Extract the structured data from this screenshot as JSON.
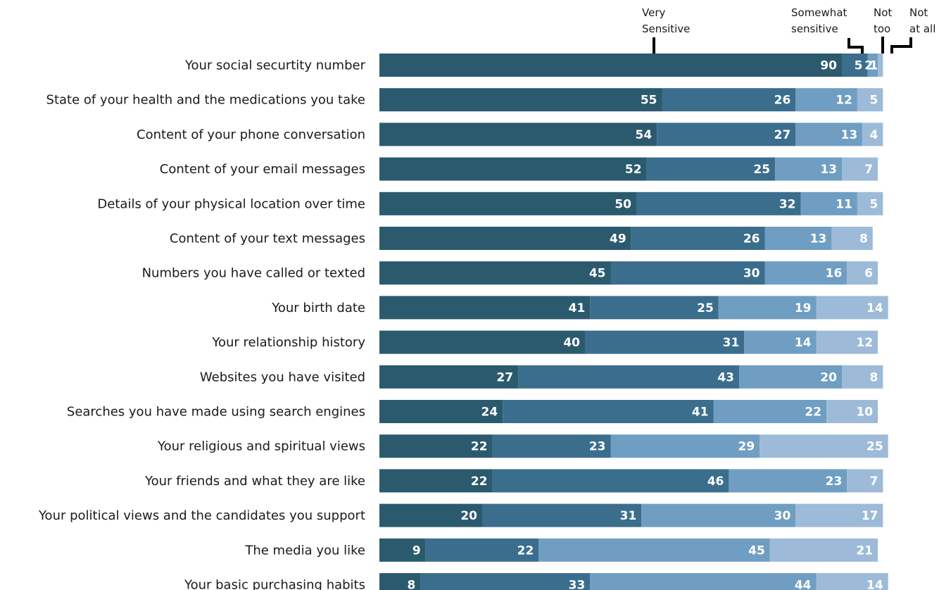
{
  "chart_data": {
    "type": "bar",
    "orientation": "horizontal",
    "stacked": true,
    "title": "",
    "xlabel": "",
    "ylabel": "",
    "grid": false,
    "legend_placement": "top, above bars with leader lines",
    "categories": [
      "Your social securtity number",
      "State of your health and the medications you take",
      "Content of your phone conversation",
      "Content of your email messages",
      "Details of your physical location over time",
      "Content of your text messages",
      "Numbers you have called or texted",
      "Your birth date",
      "Your relationship history",
      "Websites you have visited",
      "Searches you have made using search engines",
      "Your religious and spiritual views",
      "Your friends and what they are like",
      "Your political views and the candidates you support",
      "The media you like",
      "Your basic purchasing habits"
    ],
    "series": [
      {
        "name": "Very Sensitive",
        "legend_lines": [
          "Very",
          "Sensitive"
        ],
        "color": "#2b5a6e",
        "values": [
          90,
          55,
          54,
          52,
          50,
          49,
          45,
          41,
          40,
          27,
          24,
          22,
          22,
          20,
          9,
          8
        ]
      },
      {
        "name": "Somewhat sensitive",
        "legend_lines": [
          "Somewhat",
          "sensitive"
        ],
        "color": "#3a6e8c",
        "values": [
          5,
          26,
          27,
          25,
          32,
          26,
          30,
          25,
          31,
          43,
          41,
          23,
          46,
          31,
          22,
          33
        ]
      },
      {
        "name": "Not too",
        "legend_lines": [
          "Not",
          "too"
        ],
        "color": "#6f9ec2",
        "values": [
          2,
          12,
          13,
          13,
          11,
          13,
          16,
          19,
          14,
          20,
          22,
          29,
          23,
          30,
          45,
          44
        ]
      },
      {
        "name": "Not at all",
        "legend_lines": [
          "Not",
          "at all"
        ],
        "color": "#9dbbd8",
        "values": [
          1,
          5,
          4,
          7,
          5,
          8,
          6,
          14,
          12,
          8,
          10,
          25,
          7,
          17,
          21,
          14
        ]
      }
    ]
  }
}
